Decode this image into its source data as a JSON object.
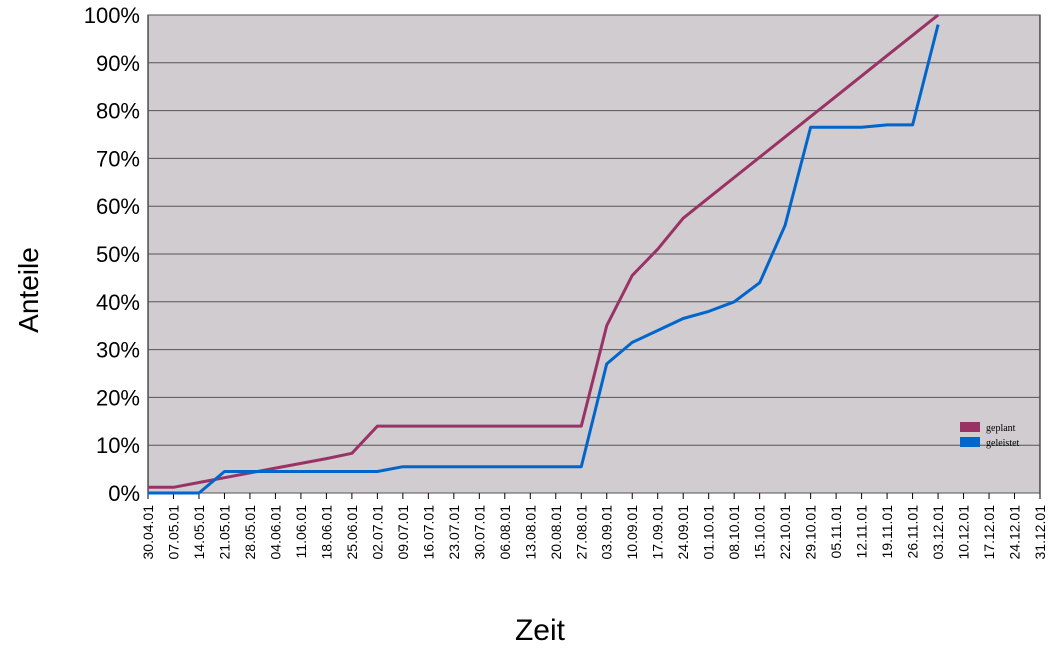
{
  "chart_data": {
    "type": "line",
    "x_label": "Zeit",
    "y_label": "Anteile",
    "categories": [
      "30.04.01",
      "07.05.01",
      "14.05.01",
      "21.05.01",
      "28.05.01",
      "04.06.01",
      "11.06.01",
      "18.06.01",
      "25.06.01",
      "02.07.01",
      "09.07.01",
      "16.07.01",
      "23.07.01",
      "30.07.01",
      "06.08.01",
      "13.08.01",
      "20.08.01",
      "27.08.01",
      "03.09.01",
      "10.09.01",
      "17.09.01",
      "24.09.01",
      "01.10.01",
      "08.10.01",
      "15.10.01",
      "22.10.01",
      "29.10.01",
      "05.11.01",
      "12.11.01",
      "19.11.01",
      "26.11.01",
      "03.12.01",
      "10.12.01",
      "17.12.01",
      "24.12.01",
      "31.12.01"
    ],
    "series": [
      {
        "name": "geplant",
        "color": "#993366",
        "values": [
          1.2,
          1.2,
          2.2,
          3.2,
          4.2,
          5.2,
          6.2,
          7.2,
          8.3,
          14,
          14,
          14,
          14,
          14,
          14,
          14,
          14,
          14,
          35,
          45.5,
          51,
          57.5,
          61.75,
          66,
          70.25,
          74.5,
          78.75,
          83,
          87.25,
          91.5,
          95.75,
          100,
          null,
          null,
          null,
          null
        ]
      },
      {
        "name": "geleistet",
        "color": "#0066cc",
        "values": [
          0,
          0,
          0,
          4.5,
          4.5,
          4.5,
          4.5,
          4.5,
          4.5,
          4.5,
          5.5,
          5.5,
          5.5,
          5.5,
          5.5,
          5.5,
          5.5,
          5.5,
          27,
          31.5,
          34,
          36.5,
          38,
          40,
          44,
          56,
          76.5,
          76.5,
          76.5,
          77,
          77,
          98,
          null,
          null,
          null,
          null
        ]
      }
    ],
    "ylim": [
      0,
      100
    ],
    "yticks": [
      {
        "value": 0,
        "label": "0%"
      },
      {
        "value": 10,
        "label": "10%"
      },
      {
        "value": 20,
        "label": "20%"
      },
      {
        "value": 30,
        "label": "30%"
      },
      {
        "value": 40,
        "label": "40%"
      },
      {
        "value": 50,
        "label": "50%"
      },
      {
        "value": 60,
        "label": "60%"
      },
      {
        "value": 70,
        "label": "70%"
      },
      {
        "value": 80,
        "label": "80%"
      },
      {
        "value": 90,
        "label": "90%"
      },
      {
        "value": 100,
        "label": "100%"
      }
    ],
    "grid": true,
    "legend": "right"
  }
}
